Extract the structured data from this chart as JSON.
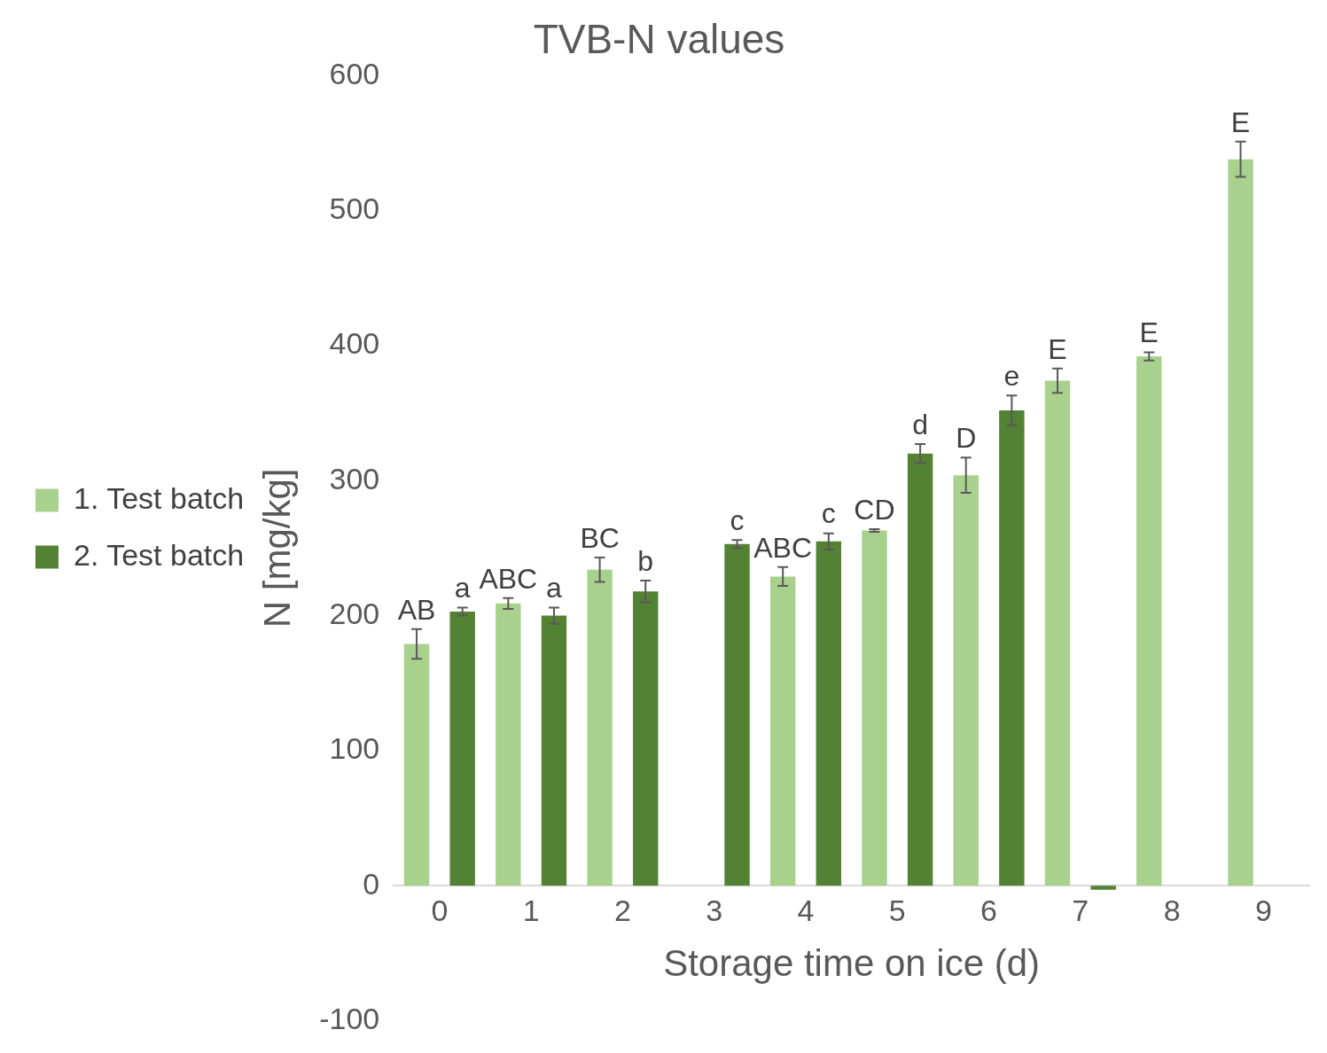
{
  "chart_data": {
    "type": "bar",
    "title": "TVB-N values",
    "xlabel": "Storage time on ice (d)",
    "ylabel": "N [mg/kg]",
    "categories": [
      "0",
      "1",
      "2",
      "3",
      "4",
      "5",
      "6",
      "7",
      "8",
      "9"
    ],
    "series": [
      {
        "name": "1. Test batch",
        "color": "#a9d18e",
        "values": [
          179,
          209,
          234,
          null,
          229,
          263,
          304,
          374,
          392,
          538
        ],
        "errors": [
          11,
          4,
          9,
          null,
          7,
          1,
          13,
          9,
          3,
          13
        ],
        "value_labels": [
          "AB",
          "ABC",
          "BC",
          null,
          "ABC",
          "CD",
          "D",
          "E",
          "E",
          "E"
        ]
      },
      {
        "name": "2. Test batch",
        "color": "#548235",
        "values": [
          203,
          200,
          218,
          253,
          255,
          320,
          352,
          -3,
          null,
          null
        ],
        "errors": [
          3,
          6,
          8,
          3,
          6,
          7,
          11,
          null,
          null,
          null
        ],
        "value_labels": [
          "a",
          "a",
          "b",
          "c",
          "c",
          "d",
          "e",
          null,
          null,
          null
        ]
      }
    ],
    "ylim": [
      -100,
      600
    ],
    "yticks": [
      -100,
      0,
      100,
      200,
      300,
      400,
      500,
      600
    ],
    "grid": false,
    "legend": "left"
  }
}
